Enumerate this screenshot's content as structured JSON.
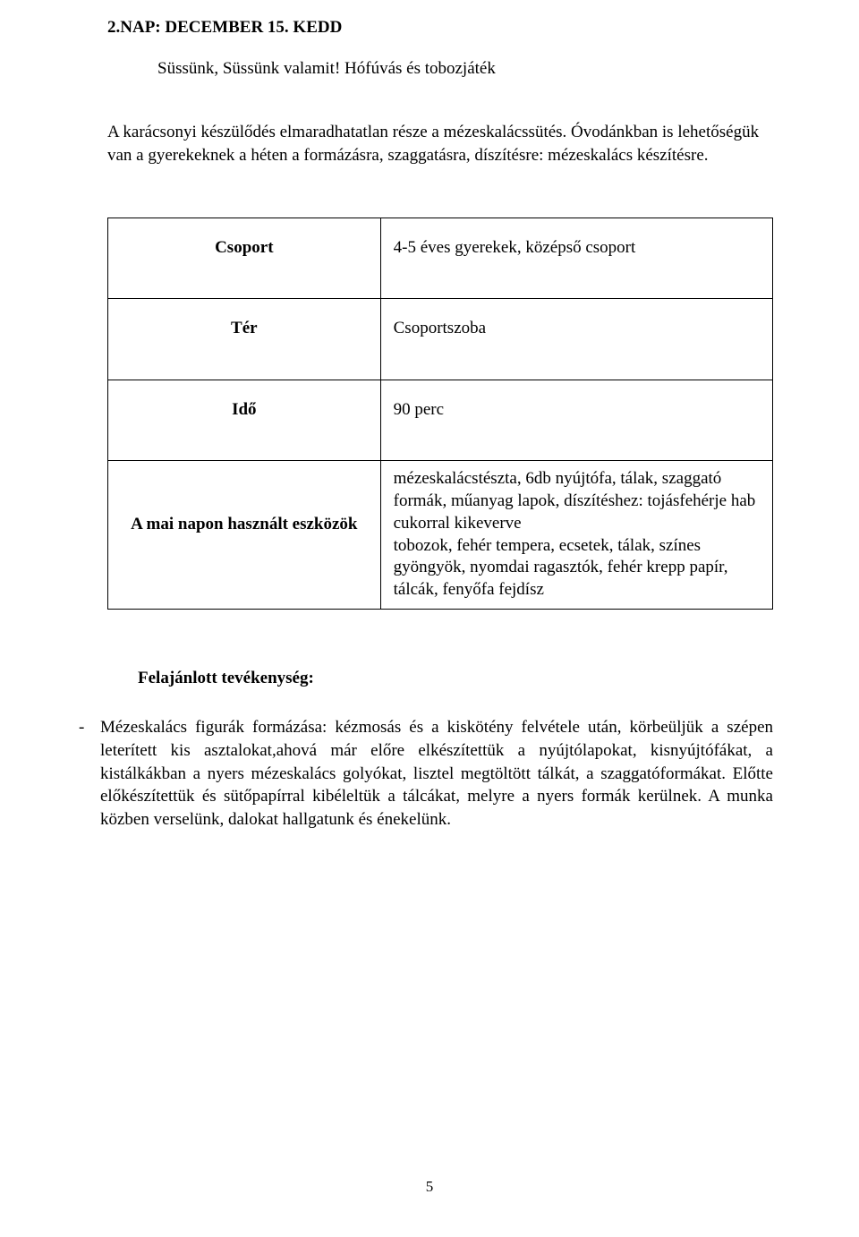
{
  "heading": "2.NAP: DECEMBER 15. KEDD",
  "subtitle": "Süssünk, Süssünk valamit! Hófúvás és tobozjáték",
  "intro_paragraph": "A karácsonyi készülődés elmaradhatatlan része a mézeskalácssütés. Óvodánkban is lehetőségük van a gyerekeknek a héten a formázásra, szaggatásra, díszítésre: mézeskalács készítésre.",
  "table": {
    "rows": [
      {
        "label": "Csoport",
        "value": "4-5 éves gyerekek, középső csoport"
      },
      {
        "label": "Tér",
        "value": "Csoportszoba"
      },
      {
        "label": "Idő",
        "value": "90 perc"
      },
      {
        "label": "A mai napon használt eszközök",
        "value": "mézeskalácstészta, 6db nyújtófa, tálak, szaggató formák, műanyag lapok, díszítéshez: tojásfehérje hab cukorral kikeverve\ntobozok, fehér tempera, ecsetek, tálak, színes gyöngyök, nyomdai ragasztók, fehér krepp papír, tálcák, fenyőfa fejdísz"
      }
    ]
  },
  "activity_heading": "Felajánlott tevékenység:",
  "activity_item": "Mézeskalács figurák formázása: kézmosás és a kiskötény felvétele után, körbeüljük a szépen leterített kis asztalokat,ahová már előre elkészítettük a nyújtólapokat, kisnyújtófákat, a kistálkákban a nyers mézeskalács golyókat, lisztel megtöltött tálkát, a szaggatóformákat. Előtte előkészítettük és sütőpapírral kibéleltük a tálcákat, melyre a nyers formák kerülnek. A munka közben verselünk, dalokat hallgatunk és énekelünk.",
  "page_number": "5"
}
